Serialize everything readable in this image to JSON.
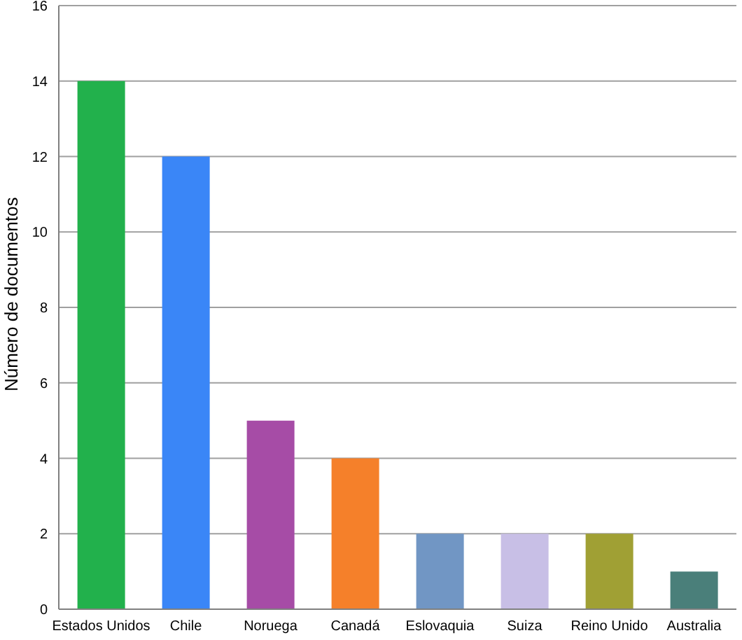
{
  "chart_data": {
    "type": "bar",
    "ylabel": "Número de documentos",
    "categories": [
      "Estados Unidos",
      "Chile",
      "Noruega",
      "Canadá",
      "Eslovaquia",
      "Suiza",
      "Reino Unido",
      "Australia"
    ],
    "values": [
      14,
      12,
      5,
      4,
      2,
      2,
      2,
      1
    ],
    "colors": [
      "#22b14c",
      "#3a86f7",
      "#a64ca6",
      "#f5802a",
      "#7196c4",
      "#c8bfe6",
      "#a0a034",
      "#4a7f7a"
    ],
    "ylim": [
      0,
      16
    ],
    "yticks": [
      0,
      2,
      4,
      6,
      8,
      10,
      12,
      14,
      16
    ],
    "grid": "y"
  }
}
